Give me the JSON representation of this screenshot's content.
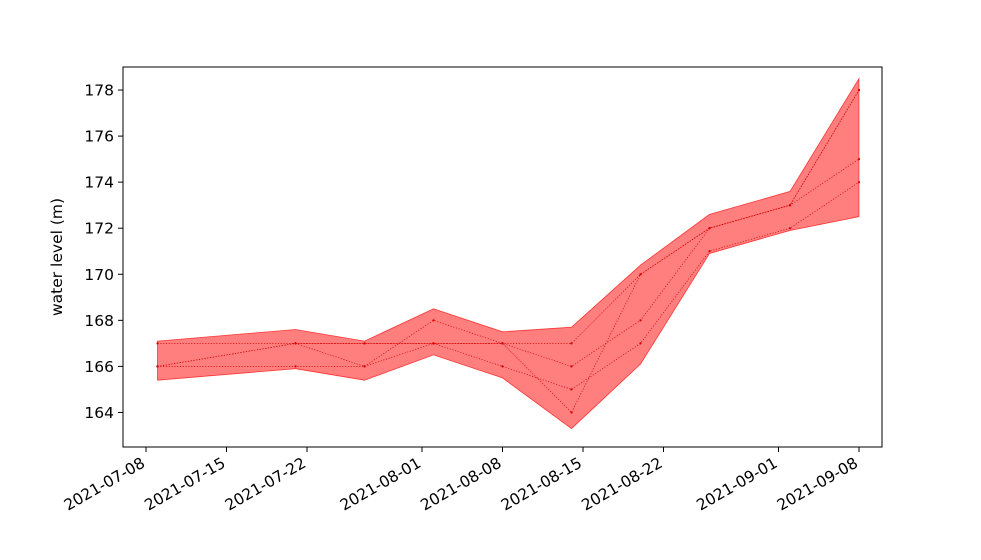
{
  "chart_data": {
    "type": "area",
    "title": "",
    "xlabel": "",
    "ylabel": "water level (m)",
    "ylim": [
      162.5,
      179.0
    ],
    "xlim": [
      "2021-07-06",
      "2021-09-10"
    ],
    "grid": false,
    "x_ticks": [
      "2021-07-08",
      "2021-07-15",
      "2021-07-22",
      "2021-08-01",
      "2021-08-08",
      "2021-08-15",
      "2021-08-22",
      "2021-09-01",
      "2021-09-08"
    ],
    "y_ticks": [
      164,
      166,
      168,
      170,
      172,
      174,
      176,
      178
    ],
    "x": [
      "2021-07-09",
      "2021-07-21",
      "2021-07-27",
      "2021-08-02",
      "2021-08-08",
      "2021-08-14",
      "2021-08-20",
      "2021-08-26",
      "2021-09-02",
      "2021-09-08"
    ],
    "band": {
      "color": "#ff0000",
      "opacity": 0.5,
      "upper": [
        167.1,
        167.6,
        167.1,
        168.5,
        167.5,
        167.7,
        170.4,
        172.6,
        173.6,
        178.5
      ],
      "lower": [
        165.4,
        165.9,
        165.4,
        166.5,
        165.5,
        163.3,
        166.1,
        170.9,
        171.9,
        172.5
      ]
    },
    "series": [
      {
        "values": [
          167,
          167,
          167,
          167,
          167,
          167,
          170,
          172,
          173,
          178
        ]
      },
      {
        "values": [
          166,
          167,
          166,
          168,
          167,
          166,
          168,
          172,
          173,
          175
        ]
      },
      {
        "values": [
          166,
          166,
          166,
          167,
          166,
          165,
          167,
          171,
          172,
          174
        ]
      },
      {
        "values": [
          166,
          167,
          167,
          167,
          167,
          164,
          170,
          172,
          173,
          178
        ]
      }
    ],
    "line_color": "#d40000"
  }
}
